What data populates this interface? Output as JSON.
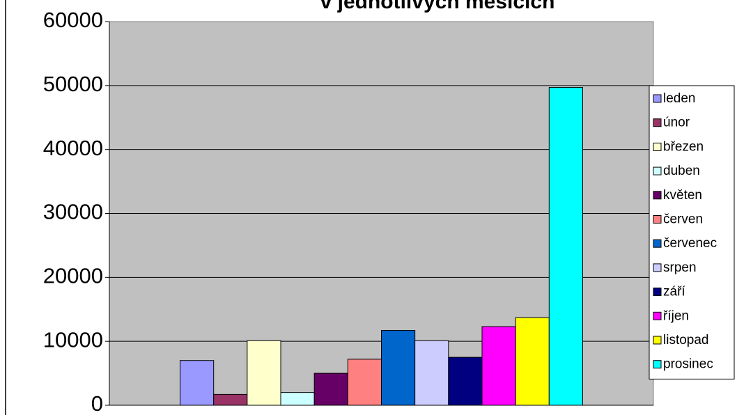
{
  "chart_data": {
    "type": "bar",
    "title": "v jednotlivých měsících",
    "categories": [
      null
    ],
    "series": [
      {
        "name": "leden",
        "color": "#9999ff",
        "values": [
          7000
        ]
      },
      {
        "name": "únor",
        "color": "#993366",
        "values": [
          1700
        ]
      },
      {
        "name": "březen",
        "color": "#ffffcc",
        "values": [
          10100
        ]
      },
      {
        "name": "duben",
        "color": "#ccffff",
        "values": [
          2000
        ]
      },
      {
        "name": "květen",
        "color": "#660066",
        "values": [
          5000
        ]
      },
      {
        "name": "červen",
        "color": "#ff8080",
        "values": [
          7200
        ]
      },
      {
        "name": "červenec",
        "color": "#0066cc",
        "values": [
          11700
        ]
      },
      {
        "name": "srpen",
        "color": "#ccccff",
        "values": [
          10100
        ]
      },
      {
        "name": "září",
        "color": "#000080",
        "values": [
          7500
        ]
      },
      {
        "name": "říjen",
        "color": "#ff00ff",
        "values": [
          12300
        ]
      },
      {
        "name": "listopad",
        "color": "#ffff00",
        "values": [
          13700
        ]
      },
      {
        "name": "prosinec",
        "color": "#00ffff",
        "values": [
          49700
        ]
      }
    ],
    "ylim": [
      0,
      60000
    ],
    "yticks": [
      0,
      10000,
      20000,
      30000,
      40000,
      50000,
      60000
    ],
    "grid": true,
    "legend": "right"
  }
}
